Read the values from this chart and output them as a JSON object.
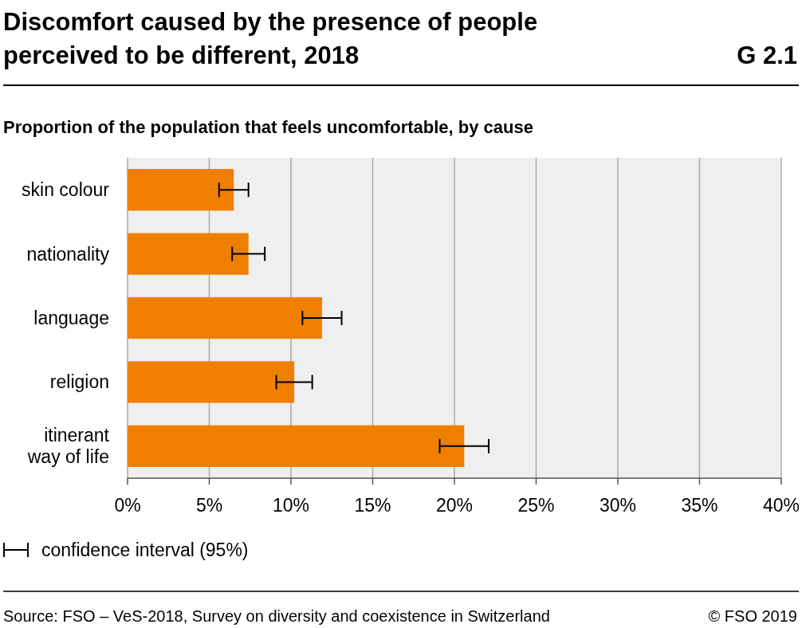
{
  "chart_data": {
    "type": "bar",
    "orientation": "horizontal",
    "title": "Discomfort caused by the presence of people perceived to be different, 2018",
    "subtitle": "Proportion of the population that feels uncomfortable, by cause",
    "categories": [
      "skin colour",
      "nationality",
      "language",
      "religion",
      "itinerant way of life"
    ],
    "values": [
      6.5,
      7.4,
      11.9,
      10.2,
      20.6
    ],
    "errors": [
      [
        5.6,
        7.4
      ],
      [
        6.4,
        8.4
      ],
      [
        10.7,
        13.1
      ],
      [
        9.1,
        11.3
      ],
      [
        19.1,
        22.1
      ]
    ],
    "color": "#f07f00",
    "xlim": [
      0,
      40
    ],
    "xticks": [
      {
        "value": 0,
        "label": "0%"
      },
      {
        "value": 5,
        "label": "5%"
      },
      {
        "value": 10,
        "label": "10%"
      },
      {
        "value": 15,
        "label": "15%"
      },
      {
        "value": 20,
        "label": "20%"
      },
      {
        "value": 25,
        "label": "25%"
      },
      {
        "value": 30,
        "label": "30%"
      },
      {
        "value": 35,
        "label": "35%"
      },
      {
        "value": 40,
        "label": "40%"
      }
    ],
    "grid": "x",
    "annotations": [
      "G 2.1",
      "confidence interval (95%)",
      "Source: FSO – VeS-2018, Survey on diversity and coexistence in Switzerland",
      "© FSO 2019"
    ]
  }
}
